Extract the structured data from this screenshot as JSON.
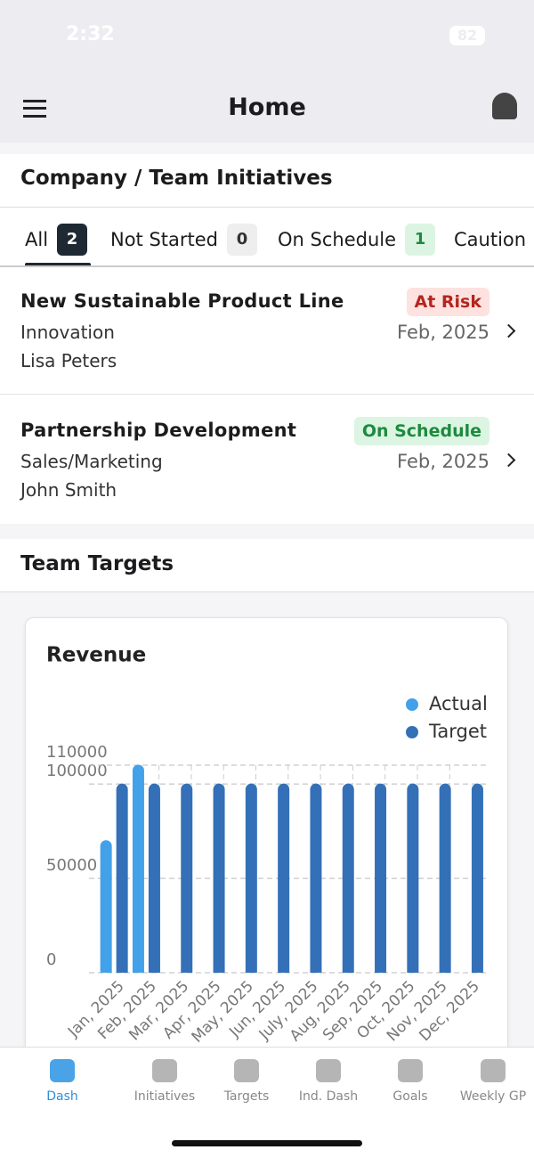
{
  "status_bar": {
    "time": "2:32",
    "battery": "82"
  },
  "header": {
    "title": "Home"
  },
  "initiatives": {
    "title": "Company / Team Initiatives",
    "tabs": [
      {
        "label": "All",
        "count": 2
      },
      {
        "label": "Not Started",
        "count": 0
      },
      {
        "label": "On Schedule",
        "count": 1
      },
      {
        "label": "Caution"
      }
    ],
    "items": [
      {
        "name": "New Sustainable Product Line",
        "category": "Innovation",
        "owner": "Lisa Peters",
        "status": "At Risk",
        "date": "Feb, 2025"
      },
      {
        "name": "Partnership Development",
        "category": "Sales/Marketing",
        "owner": "John Smith",
        "status": "On Schedule",
        "date": "Feb, 2025"
      }
    ]
  },
  "team_targets": {
    "title": "Team Targets"
  },
  "chart_data": {
    "type": "bar",
    "title": "Revenue",
    "categories": [
      "Jan, 2025",
      "Feb, 2025",
      "Mar, 2025",
      "Apr, 2025",
      "May, 2025",
      "Jun, 2025",
      "July, 2025",
      "Aug, 2025",
      "Sep, 2025",
      "Oct, 2025",
      "Nov, 2025",
      "Dec, 2025"
    ],
    "series": [
      {
        "name": "Actual",
        "color": "#42a1e8",
        "values": [
          70000,
          110000,
          null,
          null,
          null,
          null,
          null,
          null,
          null,
          null,
          null,
          null
        ]
      },
      {
        "name": "Target",
        "color": "#3470b8",
        "values": [
          100000,
          100000,
          100000,
          100000,
          100000,
          100000,
          100000,
          100000,
          100000,
          100000,
          100000,
          100000
        ]
      }
    ],
    "ylim": [
      0,
      110000
    ],
    "yticks": [
      0,
      50000,
      100000,
      110000
    ],
    "grid": true,
    "legend": "top-right"
  },
  "nav": {
    "items": [
      "Dash",
      "Initiatives",
      "Targets",
      "Ind. Dash",
      "Goals",
      "Weekly GP"
    ]
  }
}
